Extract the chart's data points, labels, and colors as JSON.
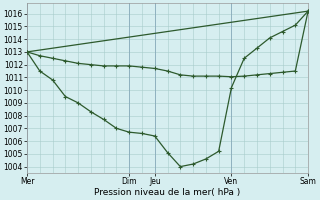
{
  "bg_color": "#d6eef0",
  "line_color": "#2d5a2d",
  "grid_color": "#a8cccc",
  "xlabel": "Pression niveau de la mer( hPa )",
  "ylim": [
    1003.5,
    1016.8
  ],
  "xlim": [
    0,
    132
  ],
  "yticks": [
    1004,
    1005,
    1006,
    1007,
    1008,
    1009,
    1010,
    1011,
    1012,
    1013,
    1014,
    1015,
    1016
  ],
  "day_labels": [
    "Mer",
    "Dim",
    "Jeu",
    "Ven",
    "Sam"
  ],
  "day_positions": [
    0,
    48,
    60,
    96,
    132
  ],
  "minor_xticks": [
    0,
    6,
    12,
    18,
    24,
    30,
    36,
    42,
    48,
    54,
    60,
    66,
    72,
    78,
    84,
    90,
    96,
    102,
    108,
    114,
    120,
    126,
    132
  ],
  "series1_x": [
    0,
    6,
    12,
    18,
    24,
    30,
    36,
    42,
    48,
    54,
    60,
    66,
    72,
    78,
    84,
    90,
    96,
    102,
    108,
    114,
    120,
    126,
    132
  ],
  "series1_y": [
    1013.0,
    1012.7,
    1012.5,
    1012.3,
    1012.1,
    1012.0,
    1011.9,
    1011.9,
    1011.9,
    1011.8,
    1011.7,
    1011.5,
    1011.2,
    1011.1,
    1011.1,
    1011.1,
    1011.05,
    1011.1,
    1011.2,
    1011.3,
    1011.4,
    1011.5,
    1016.2
  ],
  "series2_x": [
    0,
    6,
    12,
    18,
    24,
    30,
    36,
    42,
    48,
    54,
    60,
    66,
    72,
    78,
    84,
    90,
    96,
    102,
    108,
    114,
    120,
    126,
    132
  ],
  "series2_y": [
    1013.0,
    1011.5,
    1010.8,
    1009.5,
    1009.0,
    1008.3,
    1007.7,
    1007.0,
    1006.7,
    1006.6,
    1006.4,
    1005.1,
    1004.0,
    1004.2,
    1004.6,
    1005.2,
    1010.2,
    1012.5,
    1013.3,
    1014.1,
    1014.6,
    1015.1,
    1016.2
  ],
  "series3_x": [
    0,
    132
  ],
  "series3_y": [
    1013.0,
    1016.2
  ],
  "tick_fontsize": 5.5,
  "xlabel_fontsize": 6.5,
  "linewidth": 0.9,
  "markersize": 2.5
}
